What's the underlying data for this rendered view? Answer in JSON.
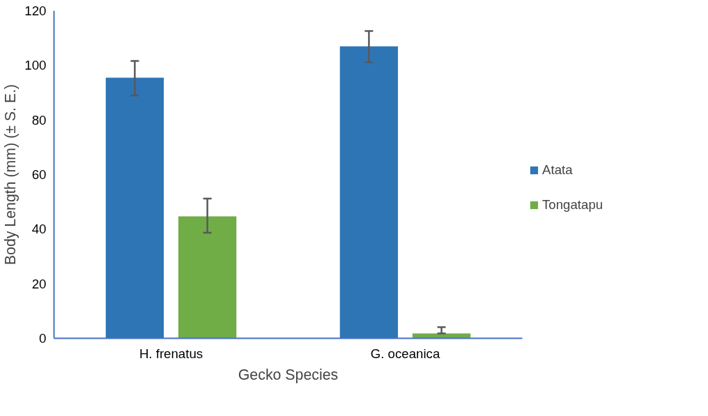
{
  "chart_data": {
    "type": "bar",
    "xlabel": "Gecko Species",
    "ylabel": "Body Length (mm) (± S. E.)",
    "categories": [
      "H. frenatus",
      "G. oceanica"
    ],
    "series": [
      {
        "name": "Atata",
        "color": "#2e75b6",
        "values": [
          95.5,
          107
        ],
        "errors": [
          [
            89,
            101.6
          ],
          [
            101.2,
            112.6
          ]
        ]
      },
      {
        "name": "Tongatapu",
        "color": "#70ad47",
        "values": [
          44.7,
          1.8
        ],
        "errors": [
          [
            38.7,
            51.2
          ],
          [
            1.8,
            4.1
          ]
        ]
      }
    ],
    "ylim": [
      0,
      120
    ],
    "yticks": [
      0,
      20,
      40,
      60,
      80,
      100,
      120
    ],
    "grid": false,
    "legend": "right"
  }
}
